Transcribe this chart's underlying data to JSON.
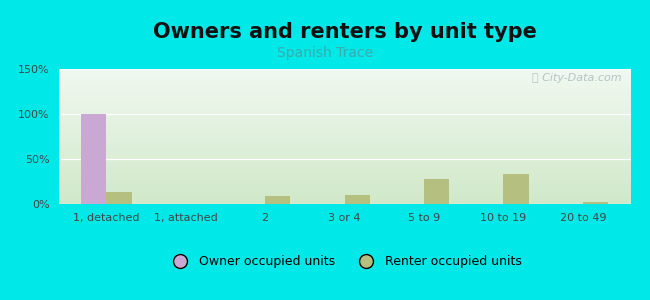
{
  "title": "Owners and renters by unit type",
  "subtitle": "Spanish Trace",
  "categories": [
    "1, detached",
    "1, attached",
    "2",
    "3 or 4",
    "5 to 9",
    "10 to 19",
    "20 to 49"
  ],
  "owner_values": [
    100,
    0,
    0,
    0,
    0,
    0,
    0
  ],
  "renter_values": [
    13,
    0,
    9,
    10,
    28,
    33,
    2
  ],
  "owner_color": "#c9a8d4",
  "renter_color": "#b5bf80",
  "background_color": "#00e8e8",
  "plot_bg_top": "#f0f8f0",
  "plot_bg_bottom": "#c8dcc0",
  "ylim": [
    0,
    150
  ],
  "yticks": [
    0,
    50,
    100,
    150
  ],
  "ytick_labels": [
    "0%",
    "50%",
    "100%",
    "150%"
  ],
  "bar_width": 0.32,
  "title_fontsize": 15,
  "subtitle_fontsize": 10,
  "legend_fontsize": 9,
  "tick_fontsize": 8,
  "title_color": "#111111",
  "subtitle_color": "#3aacac",
  "tick_color": "#444444"
}
